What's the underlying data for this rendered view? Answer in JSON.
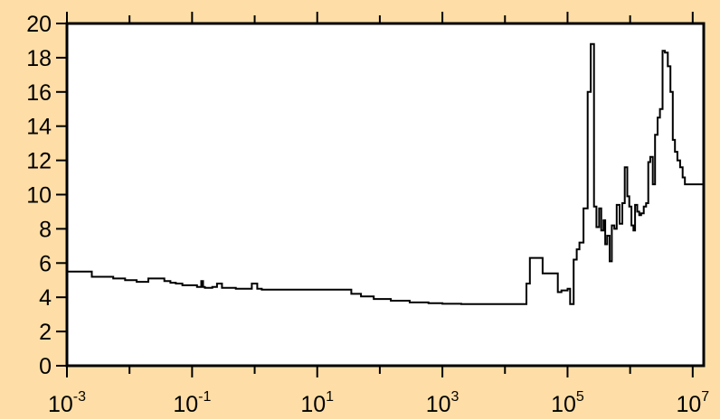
{
  "colors": {
    "background": "#FEDEA6",
    "plot_area": "#FFFFFF",
    "line": "#000000"
  },
  "chart_data": {
    "type": "line",
    "title": "",
    "xlabel": "",
    "ylabel": "",
    "xscale": "log",
    "xlim": [
      0.001,
      15000000
    ],
    "ylim": [
      0,
      20
    ],
    "grid": false,
    "legend": "none",
    "line_style": "step",
    "x_ticks": [
      {
        "value": 0.001,
        "base": "10",
        "exp": "-3"
      },
      {
        "value": 0.1,
        "base": "10",
        "exp": "-1"
      },
      {
        "value": 10,
        "base": "10",
        "exp": "1"
      },
      {
        "value": 1000,
        "base": "10",
        "exp": "3"
      },
      {
        "value": 100000,
        "base": "10",
        "exp": "5"
      },
      {
        "value": 10000000,
        "base": "10",
        "exp": "7"
      }
    ],
    "x_minor_ticks": [
      0.01,
      1,
      100,
      10000,
      1000000
    ],
    "y_ticks": [
      {
        "value": 0,
        "label": "0"
      },
      {
        "value": 2,
        "label": "2"
      },
      {
        "value": 4,
        "label": "4"
      },
      {
        "value": 6,
        "label": "6"
      },
      {
        "value": 8,
        "label": "8"
      },
      {
        "value": 10,
        "label": "10"
      },
      {
        "value": 12,
        "label": "12"
      },
      {
        "value": 14,
        "label": "14"
      },
      {
        "value": 16,
        "label": "16"
      },
      {
        "value": 18,
        "label": "18"
      },
      {
        "value": 20,
        "label": "20"
      }
    ],
    "series": [
      {
        "x": [
          0.001,
          0.0025,
          0.0055,
          0.0085,
          0.013,
          0.02,
          0.036,
          0.045,
          0.055,
          0.07,
          0.12,
          0.14,
          0.15,
          0.16,
          0.21,
          0.25,
          0.3,
          0.5,
          0.9,
          1.1,
          1.3,
          2,
          5,
          10,
          20,
          35,
          50,
          80,
          150,
          300,
          600,
          1000,
          2000,
          5000,
          10000,
          20000,
          22000,
          25000,
          40000,
          70000,
          80000,
          100000,
          110000,
          125000,
          140000,
          155000,
          180000,
          210000,
          235000,
          265000,
          290000,
          320000,
          345000,
          375000,
          400000,
          430000,
          470000,
          510000,
          560000,
          610000,
          680000,
          750000,
          820000,
          900000,
          970000,
          1050000,
          1130000,
          1200000,
          1300000,
          1400000,
          1500000,
          1650000,
          1800000,
          1950000,
          2100000,
          2300000,
          2500000,
          2750000,
          3000000,
          3300000,
          3600000,
          4000000,
          4400000,
          4800000,
          5200000,
          5700000,
          6300000,
          6900000,
          7500000,
          8200000,
          9000000,
          9800000,
          10700000,
          11700000,
          12800000,
          14000000,
          15000000
        ],
        "y": [
          5.5,
          5.2,
          5.1,
          5.0,
          4.9,
          5.1,
          4.95,
          4.85,
          4.8,
          4.7,
          4.6,
          4.95,
          4.6,
          4.55,
          4.6,
          4.8,
          4.55,
          4.5,
          4.8,
          4.5,
          4.45,
          4.45,
          4.45,
          4.45,
          4.45,
          4.2,
          4.05,
          3.9,
          3.8,
          3.7,
          3.65,
          3.62,
          3.6,
          3.6,
          3.6,
          3.6,
          4.8,
          6.3,
          5.4,
          4.3,
          4.4,
          4.5,
          3.6,
          6.2,
          6.8,
          7.2,
          9.2,
          16.0,
          18.8,
          9.3,
          8.1,
          9.2,
          7.9,
          8.5,
          7.1,
          7.6,
          6.1,
          8.2,
          8.0,
          9.4,
          8.3,
          9.5,
          11.6,
          9.9,
          9.3,
          8.2,
          7.9,
          9.4,
          9.0,
          8.8,
          8.9,
          9.3,
          9.5,
          11.9,
          12.2,
          10.6,
          13.5,
          14.5,
          15.0,
          18.4,
          18.3,
          17.5,
          16.0,
          13.2,
          12.5,
          12.0,
          11.6,
          11.0,
          10.6,
          10.6,
          10.6,
          10.6,
          10.6,
          10.6,
          10.6,
          10.6,
          10.6
        ]
      }
    ]
  }
}
